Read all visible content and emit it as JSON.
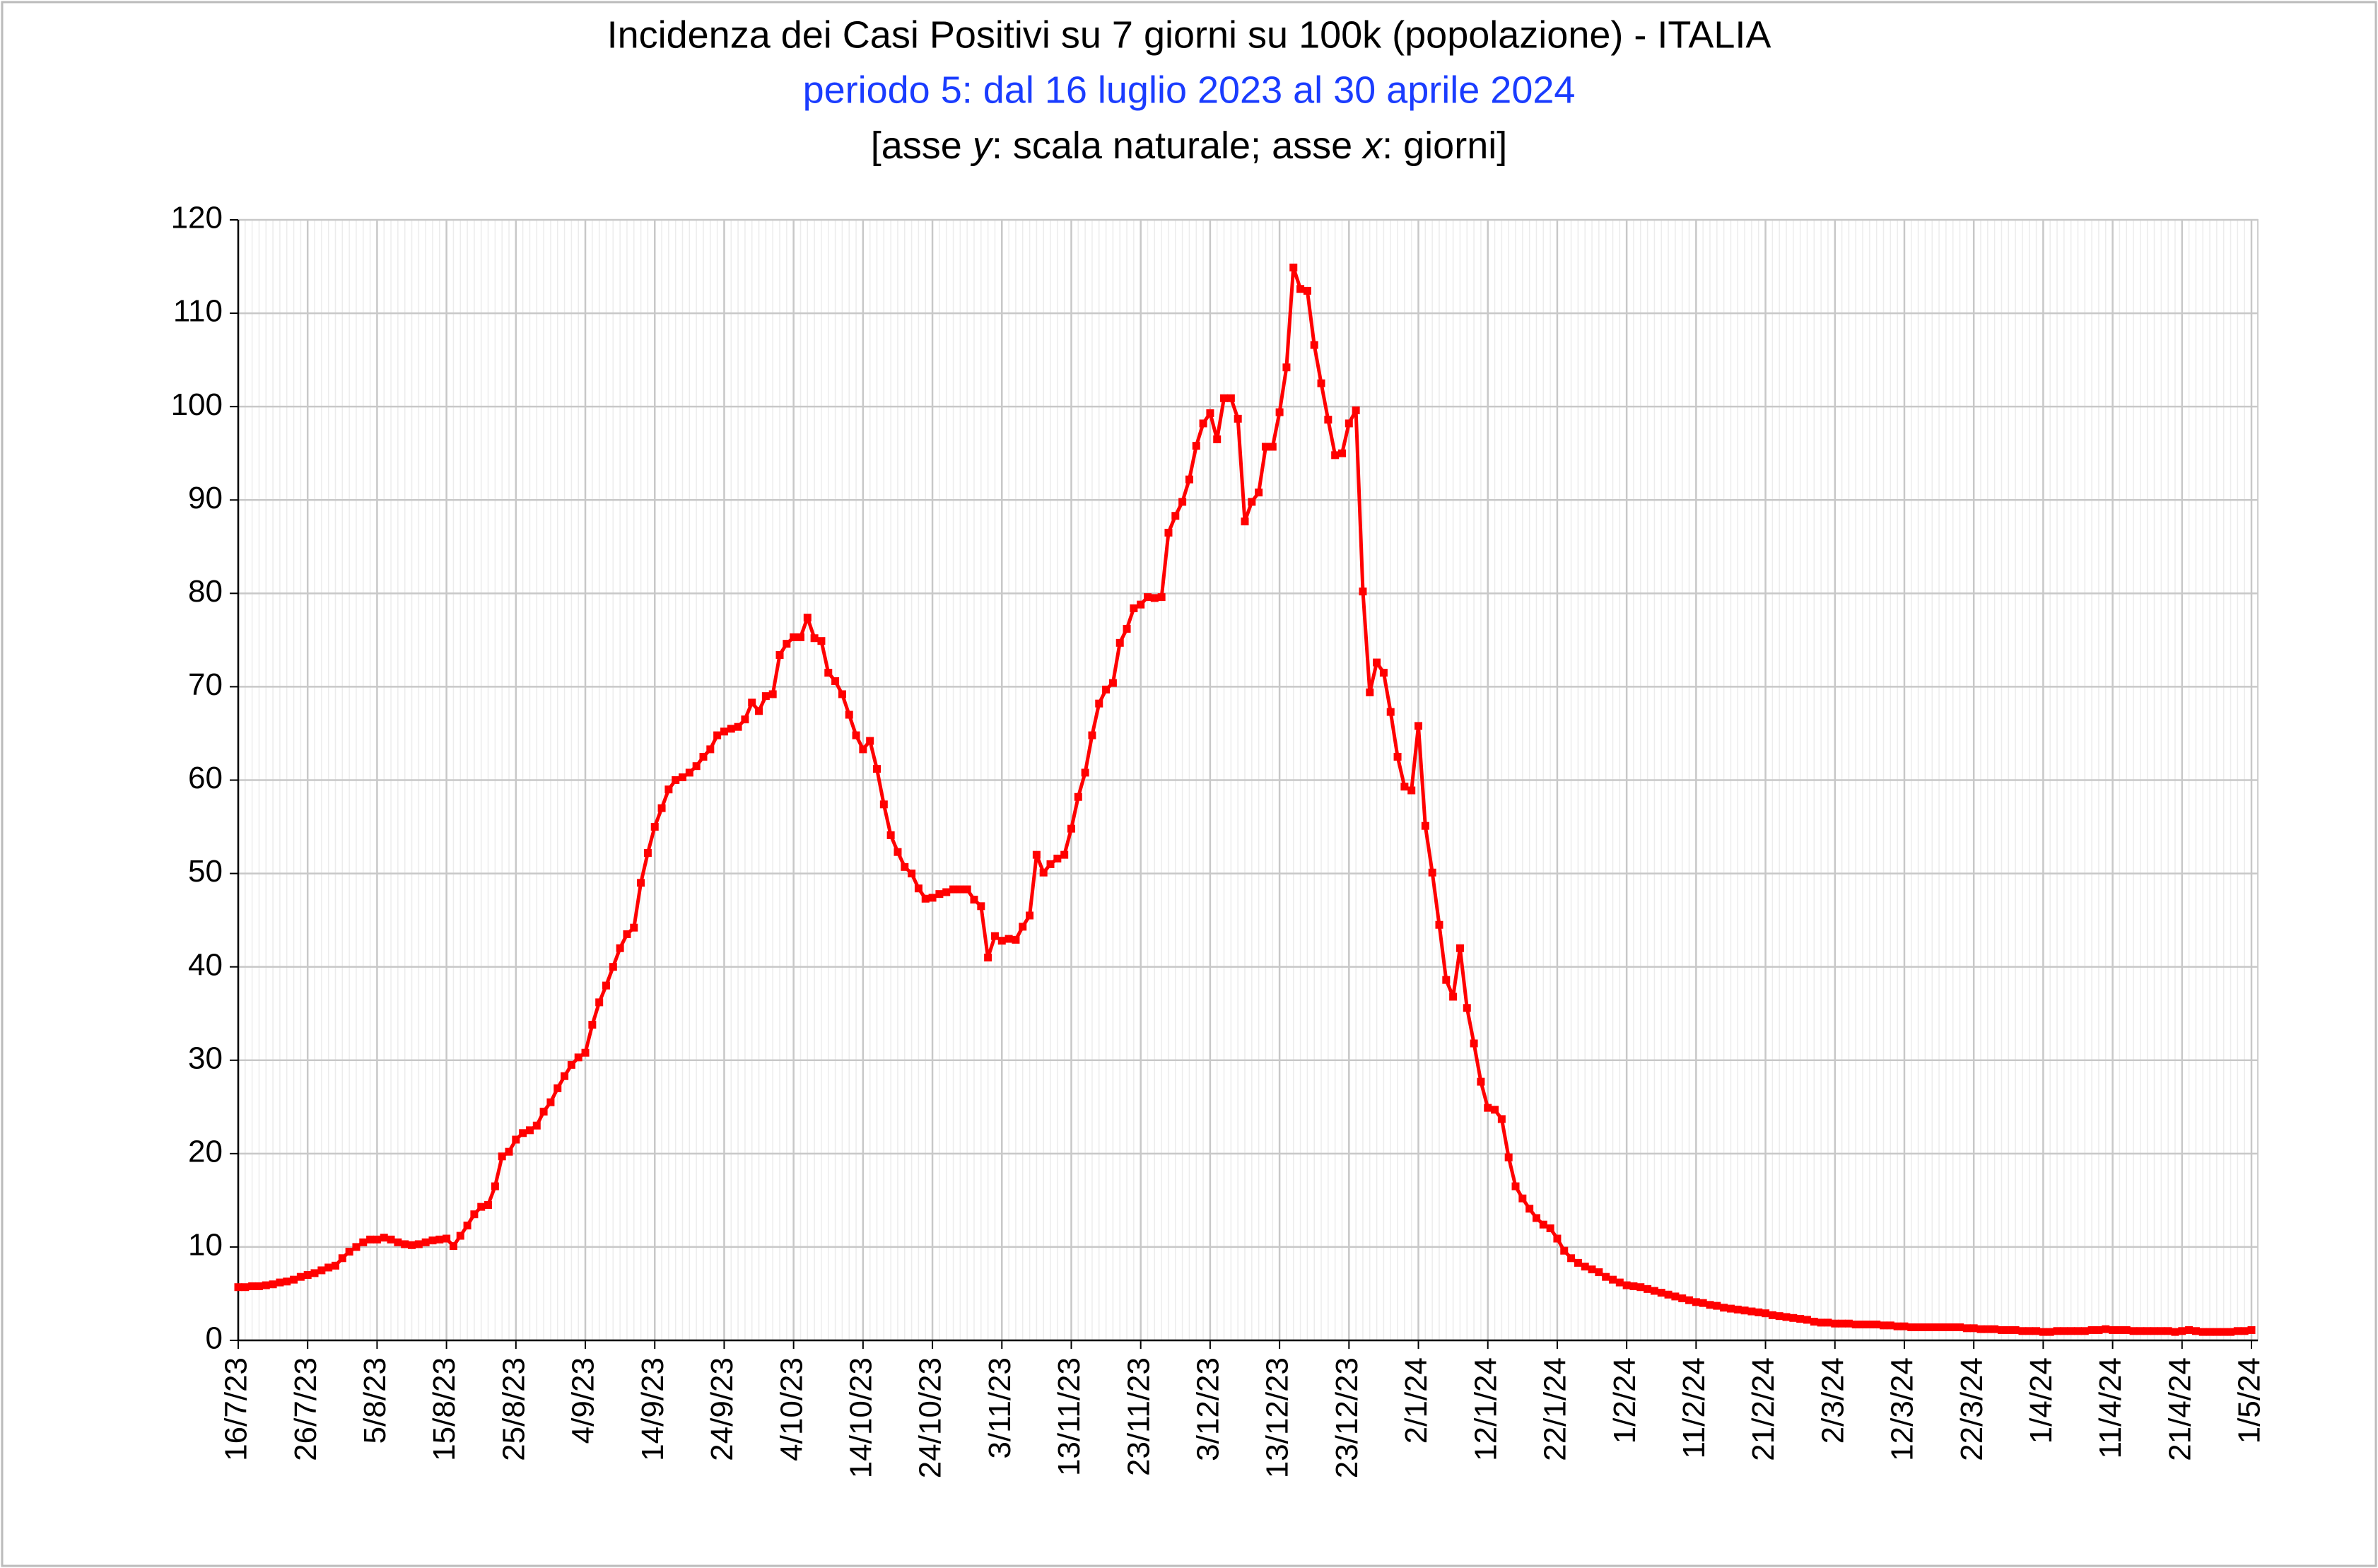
{
  "chart_data": {
    "type": "line",
    "title": "Incidenza dei Casi Positivi su 7 giorni su 100k (popolazione) - ITALIA",
    "subtitle": "periodo 5: dal 16 luglio 2023 al 30 aprile 2024",
    "note": [
      "[asse ",
      "y",
      ": scala naturale; asse ",
      "x",
      ": giorni]"
    ],
    "ylim": [
      0,
      120
    ],
    "yticks": [
      0,
      10,
      20,
      30,
      40,
      50,
      60,
      70,
      80,
      90,
      100,
      110,
      120
    ],
    "grid": true,
    "categories": [
      "16/7/23",
      null,
      null,
      null,
      null,
      null,
      null,
      null,
      null,
      null,
      "26/7/23",
      null,
      null,
      null,
      null,
      null,
      null,
      null,
      null,
      null,
      "5/8/23",
      null,
      null,
      null,
      null,
      null,
      null,
      null,
      null,
      null,
      "15/8/23",
      null,
      null,
      null,
      null,
      null,
      null,
      null,
      null,
      null,
      "25/8/23",
      null,
      null,
      null,
      null,
      null,
      null,
      null,
      null,
      null,
      "4/9/23",
      null,
      null,
      null,
      null,
      null,
      null,
      null,
      null,
      null,
      "14/9/23",
      null,
      null,
      null,
      null,
      null,
      null,
      null,
      null,
      null,
      "24/9/23",
      null,
      null,
      null,
      null,
      null,
      null,
      null,
      null,
      null,
      "4/10/23",
      null,
      null,
      null,
      null,
      null,
      null,
      null,
      null,
      null,
      "14/10/23",
      null,
      null,
      null,
      null,
      null,
      null,
      null,
      null,
      null,
      "24/10/23",
      null,
      null,
      null,
      null,
      null,
      null,
      null,
      null,
      null,
      "3/11/23",
      null,
      null,
      null,
      null,
      null,
      null,
      null,
      null,
      null,
      "13/11/23",
      null,
      null,
      null,
      null,
      null,
      null,
      null,
      null,
      null,
      "23/11/23",
      null,
      null,
      null,
      null,
      null,
      null,
      null,
      null,
      null,
      "3/12/23",
      null,
      null,
      null,
      null,
      null,
      null,
      null,
      null,
      null,
      "13/12/23",
      null,
      null,
      null,
      null,
      null,
      null,
      null,
      null,
      null,
      "23/12/23",
      null,
      null,
      null,
      null,
      null,
      null,
      null,
      null,
      null,
      "2/1/24",
      null,
      null,
      null,
      null,
      null,
      null,
      null,
      null,
      null,
      "12/1/24",
      null,
      null,
      null,
      null,
      null,
      null,
      null,
      null,
      null,
      "22/1/24",
      null,
      null,
      null,
      null,
      null,
      null,
      null,
      null,
      null,
      "1/2/24",
      null,
      null,
      null,
      null,
      null,
      null,
      null,
      null,
      null,
      "11/2/24",
      null,
      null,
      null,
      null,
      null,
      null,
      null,
      null,
      null,
      "21/2/24",
      null,
      null,
      null,
      null,
      null,
      null,
      null,
      null,
      null,
      "2/3/24",
      null,
      null,
      null,
      null,
      null,
      null,
      null,
      null,
      null,
      "12/3/24",
      null,
      null,
      null,
      null,
      null,
      null,
      null,
      null,
      null,
      "22/3/24",
      null,
      null,
      null,
      null,
      null,
      null,
      null,
      null,
      null,
      "1/4/24",
      null,
      null,
      null,
      null,
      null,
      null,
      null,
      null,
      null,
      "11/4/24",
      null,
      null,
      null,
      null,
      null,
      null,
      null,
      null,
      null,
      "21/4/24",
      null,
      null,
      null,
      null,
      null,
      null,
      null,
      null,
      null,
      "1/5/24"
    ],
    "series": [
      {
        "color": "#ff0000",
        "values": [
          5.7,
          5.7,
          5.8,
          5.8,
          5.9,
          6.0,
          6.2,
          6.3,
          6.5,
          6.8,
          7.0,
          7.2,
          7.5,
          7.8,
          8.0,
          8.8,
          9.5,
          10.0,
          10.5,
          10.8,
          10.8,
          11.0,
          10.8,
          10.5,
          10.3,
          10.2,
          10.3,
          10.5,
          10.7,
          10.8,
          10.9,
          10.1,
          11.2,
          12.3,
          13.5,
          14.3,
          14.5,
          16.5,
          19.7,
          20.2,
          21.5,
          22.2,
          22.5,
          23.0,
          24.5,
          25.5,
          27.0,
          28.3,
          29.5,
          30.3,
          30.8,
          33.8,
          36.2,
          38.0,
          40.0,
          42.0,
          43.5,
          44.2,
          49.0,
          52.2,
          55.0,
          57.0,
          59.0,
          60.0,
          60.3,
          60.8,
          61.5,
          62.5,
          63.3,
          64.8,
          65.2,
          65.5,
          65.7,
          66.5,
          68.3,
          67.4,
          69.0,
          69.2,
          73.4,
          74.6,
          75.3,
          75.3,
          77.4,
          75.2,
          74.9,
          71.5,
          70.6,
          69.2,
          67.0,
          64.8,
          63.3,
          64.2,
          61.2,
          57.4,
          54.1,
          52.3,
          50.7,
          50.0,
          48.4,
          47.3,
          47.4,
          47.8,
          48.0,
          48.3,
          48.3,
          48.3,
          47.2,
          46.5,
          41.0,
          43.3,
          42.8,
          43.0,
          42.9,
          44.3,
          45.5,
          52.0,
          50.1,
          51.0,
          51.6,
          52.0,
          54.8,
          58.2,
          60.8,
          64.8,
          68.2,
          69.7,
          70.4,
          74.7,
          76.2,
          78.4,
          78.8,
          79.6,
          79.5,
          79.6,
          86.5,
          88.3,
          89.8,
          92.2,
          95.8,
          98.2,
          99.3,
          96.5,
          100.9,
          100.9,
          98.7,
          87.7,
          89.8,
          90.8,
          95.7,
          95.7,
          99.4,
          104.2,
          114.9,
          112.6,
          112.4,
          106.6,
          102.5,
          98.6,
          94.8,
          95.0,
          98.2,
          99.6,
          80.2,
          69.4,
          72.6,
          71.5,
          67.3,
          62.5,
          59.3,
          58.9,
          65.8,
          55.1,
          50.1,
          44.5,
          38.6,
          36.8,
          42.0,
          35.6,
          31.8,
          27.7,
          24.9,
          24.7,
          23.7,
          19.6,
          16.5,
          15.2,
          14.1,
          13.1,
          12.4,
          12.0,
          10.9,
          9.6,
          8.8,
          8.3,
          7.9,
          7.6,
          7.3,
          6.8,
          6.5,
          6.2,
          5.9,
          5.8,
          5.7,
          5.5,
          5.3,
          5.1,
          4.9,
          4.7,
          4.5,
          4.3,
          4.1,
          4.0,
          3.8,
          3.7,
          3.5,
          3.4,
          3.3,
          3.2,
          3.1,
          3.0,
          2.9,
          2.7,
          2.6,
          2.5,
          2.4,
          2.3,
          2.2,
          2.0,
          1.9,
          1.9,
          1.8,
          1.8,
          1.8,
          1.7,
          1.7,
          1.7,
          1.7,
          1.6,
          1.6,
          1.5,
          1.5,
          1.4,
          1.4,
          1.4,
          1.4,
          1.4,
          1.4,
          1.4,
          1.4,
          1.3,
          1.3,
          1.2,
          1.2,
          1.2,
          1.1,
          1.1,
          1.1,
          1.0,
          1.0,
          1.0,
          0.9,
          0.9,
          1.0,
          1.0,
          1.0,
          1.0,
          1.0,
          1.1,
          1.1,
          1.2,
          1.1,
          1.1,
          1.1,
          1.0,
          1.0,
          1.0,
          1.0,
          1.0,
          1.0,
          0.9,
          1.0,
          1.1,
          1.0,
          0.9,
          0.9,
          0.9,
          0.9,
          0.9,
          1.0,
          1.0,
          1.1
        ]
      }
    ]
  }
}
